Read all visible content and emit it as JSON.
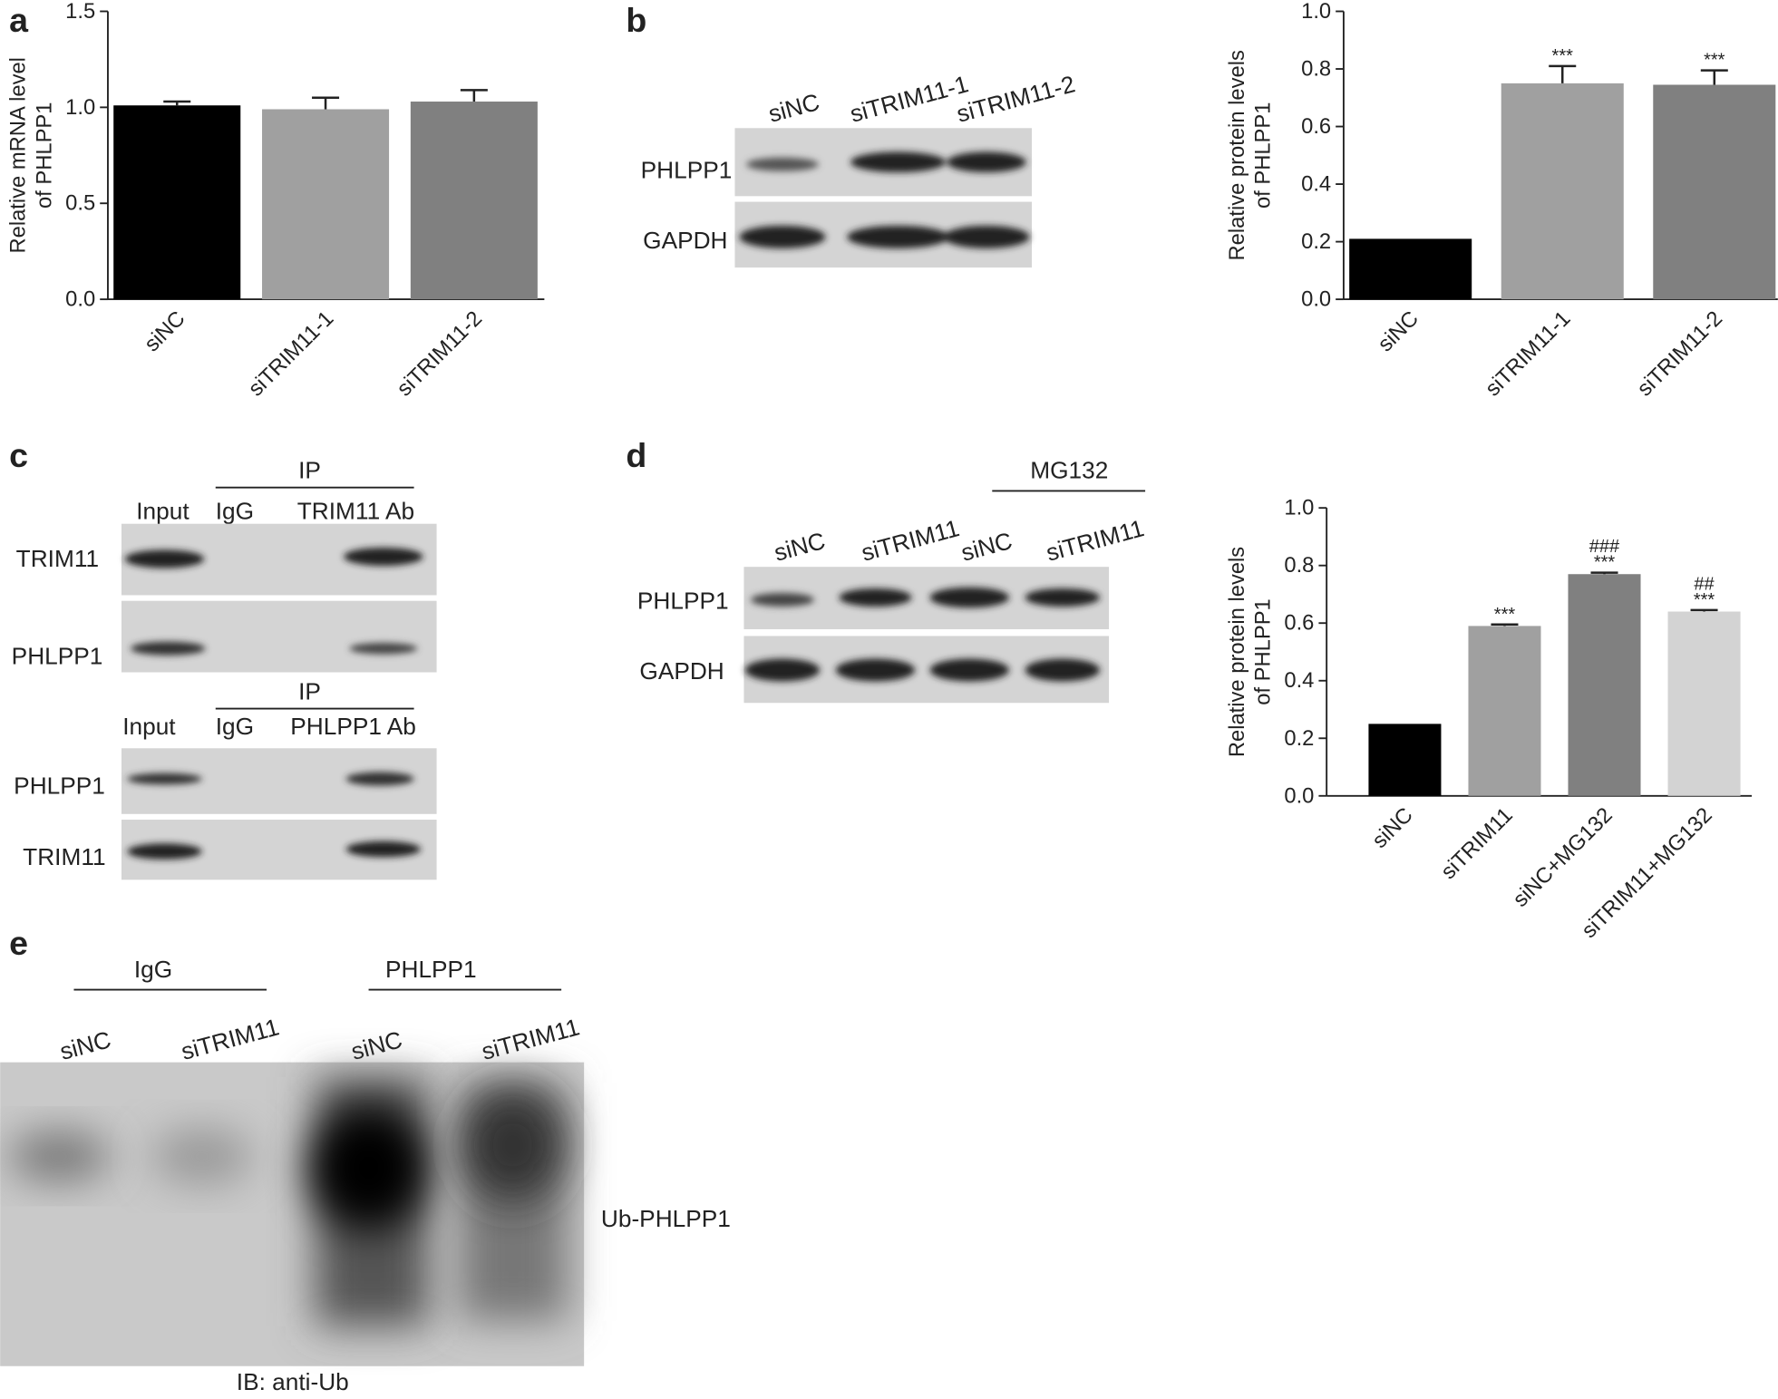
{
  "panels": [
    "a",
    "b",
    "c",
    "d",
    "e"
  ],
  "chart_data": [
    {
      "type": "bar",
      "y_label": [
        "Relative mRNA level",
        "of PHLPP1"
      ],
      "categories": [
        "siNC",
        "siTRIM11-1",
        "siTRIM11-2"
      ],
      "values": [
        1.01,
        0.99,
        1.03
      ],
      "errors": [
        0.02,
        0.06,
        0.06
      ],
      "colors": [
        "#000000",
        "#a0a0a0",
        "#808080"
      ],
      "ylim": [
        0,
        1.5
      ],
      "yticks": [
        {
          "value": 0,
          "label": "0.0"
        },
        {
          "value": 0.5,
          "label": "0.5"
        },
        {
          "value": 1,
          "label": "1.0"
        },
        {
          "value": 1.5,
          "label": "1.5"
        }
      ]
    },
    {
      "type": "bar",
      "y_label": [
        "Relative protein levels",
        "of PHLPP1"
      ],
      "categories": [
        "siNC",
        "siTRIM11-1",
        "siTRIM11-2"
      ],
      "values": [
        0.21,
        0.75,
        0.745
      ],
      "errors": [
        0,
        0.06,
        0.05
      ],
      "annotations": [
        null,
        [
          "***"
        ],
        [
          "***"
        ]
      ],
      "colors": [
        "#000000",
        "#a0a0a0",
        "#808080"
      ],
      "ylim": [
        0,
        1
      ],
      "yticks": [
        {
          "value": 0,
          "label": "0.0"
        },
        {
          "value": 0.2,
          "label": "0.2"
        },
        {
          "value": 0.4,
          "label": "0.4"
        },
        {
          "value": 0.6,
          "label": "0.6"
        },
        {
          "value": 0.8,
          "label": "0.8"
        },
        {
          "value": 1,
          "label": "1.0"
        }
      ]
    },
    {
      "type": "bar",
      "y_label": [
        "Relative protein levels",
        "of PHLPP1"
      ],
      "categories": [
        "siNC",
        "siTRIM11",
        "siNC+MG132",
        "siTRIM11+MG132"
      ],
      "values": [
        0.25,
        0.59,
        0.77,
        0.64
      ],
      "errors": [
        0,
        0.005,
        0.005,
        0.005
      ],
      "annotations": [
        null,
        [
          "***"
        ],
        [
          "###",
          "***"
        ],
        [
          "##",
          "***"
        ]
      ],
      "colors": [
        "#000000",
        "#a0a0a0",
        "#808080",
        "#d3d3d3"
      ],
      "ylim": [
        0,
        1
      ],
      "yticks": [
        {
          "value": 0,
          "label": "0.0"
        },
        {
          "value": 0.2,
          "label": "0.2"
        },
        {
          "value": 0.4,
          "label": "0.4"
        },
        {
          "value": 0.6,
          "label": "0.6"
        },
        {
          "value": 0.8,
          "label": "0.8"
        },
        {
          "value": 1,
          "label": "1.0"
        }
      ]
    }
  ],
  "blots": {
    "b": {
      "lanes": [
        "siNC",
        "siTRIM11-1",
        "siTRIM11-2"
      ],
      "rows": [
        "PHLPP1",
        "GAPDH"
      ]
    },
    "c": {
      "ip": "IP",
      "top_lanes": [
        "Input",
        "IgG",
        "TRIM11 Ab"
      ],
      "top_rows": [
        "TRIM11",
        "PHLPP1"
      ],
      "bottom_lanes": [
        "Input",
        "IgG",
        "PHLPP1 Ab"
      ],
      "bottom_rows": [
        "PHLPP1",
        "TRIM11"
      ]
    },
    "d": {
      "treatment": "MG132",
      "lanes": [
        "siNC",
        "siTRIM11",
        "siNC",
        "siTRIM11"
      ],
      "rows": [
        "PHLPP1",
        "GAPDH"
      ]
    },
    "e": {
      "groups": [
        "IgG",
        "PHLPP1"
      ],
      "lanes": [
        "siNC",
        "siTRIM11",
        "siNC",
        "siTRIM11"
      ],
      "band": "Ub-PHLPP1",
      "ib": "IB: anti-Ub"
    }
  }
}
